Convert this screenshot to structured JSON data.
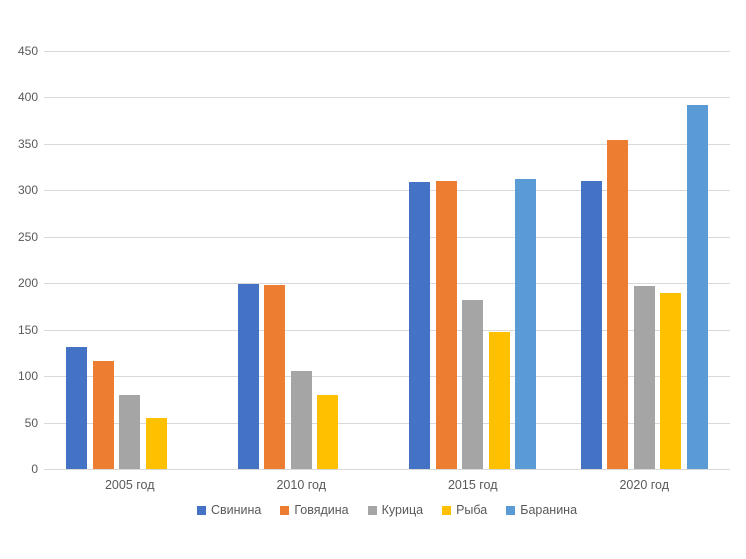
{
  "chart_data": {
    "type": "bar",
    "title": "",
    "xlabel": "",
    "ylabel": "",
    "categories": [
      "2005 год",
      "2010 год",
      "2015 год",
      "2020 год"
    ],
    "series": [
      {
        "name": "Свинина",
        "color": "#4472C4",
        "values": [
          131,
          199,
          309,
          310
        ]
      },
      {
        "name": "Говядина",
        "color": "#ED7D31",
        "values": [
          116,
          198,
          310,
          354
        ]
      },
      {
        "name": "Курица",
        "color": "#A5A5A5",
        "values": [
          80,
          105,
          182,
          197
        ]
      },
      {
        "name": "Рыба",
        "color": "#FFC000",
        "values": [
          55,
          80,
          147,
          190
        ]
      },
      {
        "name": "Баранина",
        "color": "#5B9BD5",
        "values": [
          null,
          null,
          312,
          392
        ]
      }
    ],
    "ylim": [
      0,
      450
    ],
    "yticks": [
      0,
      50,
      100,
      150,
      200,
      250,
      300,
      350,
      400,
      450
    ],
    "grid": true,
    "legend_position": "bottom",
    "colors": {
      "gridline": "#d9d9d9",
      "axis_text": "#595959",
      "background": "#ffffff"
    }
  }
}
